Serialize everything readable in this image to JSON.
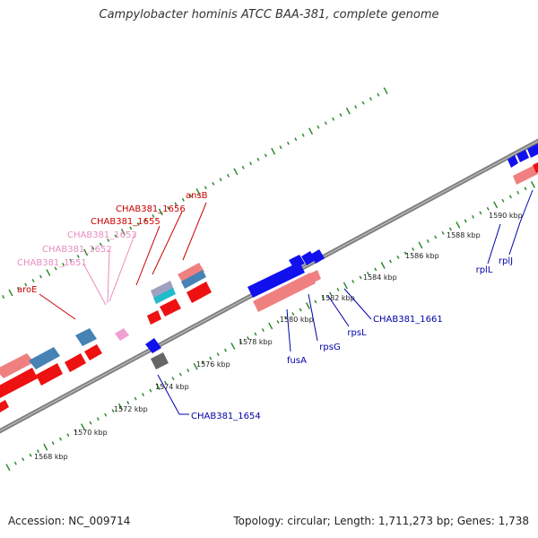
{
  "title": "Campylobacter hominis ATCC BAA-381, complete genome",
  "footer": {
    "accession": "Accession: NC_009714",
    "summary": "Topology: circular; Length: 1,711,273 bp; Genes: 1,738"
  },
  "colors": {
    "background": "#ffffff",
    "backbone": "#808080",
    "tick": "#2e8b2e",
    "cds_red": "#ee1111",
    "cds_pink": "#f08080",
    "cds_blue": "#1111ee",
    "cds_steel": "#4682b4",
    "cds_gray": "#666666",
    "cds_cyan": "#22bbcc",
    "cds_lightpink": "#f0a0d0",
    "label_red": "#cc0000",
    "label_pink": "#e88cc0",
    "label_blue": "#0000aa"
  },
  "ticks": [
    {
      "label": "1568 kbp"
    },
    {
      "label": "1570 kbp"
    },
    {
      "label": "1572 kbp"
    },
    {
      "label": "1574 kbp"
    },
    {
      "label": "1576 kbp"
    },
    {
      "label": "1578 kbp"
    },
    {
      "label": "1580 kbp"
    },
    {
      "label": "1582 kbp"
    },
    {
      "label": "1584 kbp"
    },
    {
      "label": "1586 kbp"
    },
    {
      "label": "1588 kbp"
    },
    {
      "label": "1590 kbp"
    }
  ],
  "gene_labels": [
    {
      "name": "ansB",
      "color": "label_red"
    },
    {
      "name": "CHAB381_1656",
      "color": "label_red"
    },
    {
      "name": "CHAB381_1655",
      "color": "label_red"
    },
    {
      "name": "CHAB381_1653",
      "color": "label_pink"
    },
    {
      "name": "CHAB381_1652",
      "color": "label_pink"
    },
    {
      "name": "CHAB381_1651",
      "color": "label_pink"
    },
    {
      "name": "aroE",
      "color": "label_red"
    },
    {
      "name": "CHAB381_1654",
      "color": "label_blue"
    },
    {
      "name": "fusA",
      "color": "label_blue"
    },
    {
      "name": "rpsG",
      "color": "label_blue"
    },
    {
      "name": "rpsL",
      "color": "label_blue"
    },
    {
      "name": "CHAB381_1661",
      "color": "label_blue"
    },
    {
      "name": "rplL",
      "color": "label_blue"
    },
    {
      "name": "rplJ",
      "color": "label_blue"
    }
  ]
}
